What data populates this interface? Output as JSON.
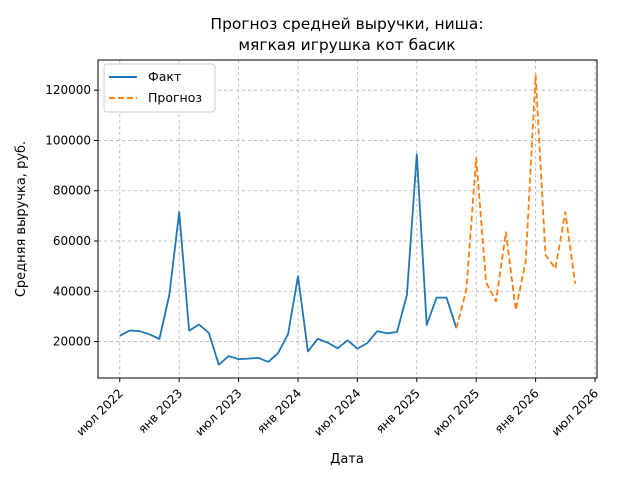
{
  "chart_data": {
    "type": "line",
    "title_lines": [
      "Прогноз средней выручки, ниша:",
      "мягкая игрушка кот басик"
    ],
    "xlabel": "Дата",
    "ylabel": "Средняя выручка, руб.",
    "x_tick_labels": [
      "июл 2022",
      "янв 2023",
      "июл 2023",
      "янв 2024",
      "июл 2024",
      "янв 2025",
      "июл 2025",
      "янв 2026",
      "июл 2026"
    ],
    "x_tick_months": [
      0,
      6,
      12,
      18,
      24,
      30,
      36,
      42,
      48
    ],
    "y_ticks": [
      20000,
      40000,
      60000,
      80000,
      100000,
      120000
    ],
    "y_tick_labels": [
      "20000",
      "40000",
      "60000",
      "80000",
      "100000",
      "120000"
    ],
    "xlim_months": [
      -2.2,
      48.2
    ],
    "ylim": [
      5500,
      132000
    ],
    "grid": true,
    "legend_position": "upper-left",
    "series": [
      {
        "name": "Факт",
        "color": "#1f77b4",
        "style": "solid",
        "x_months": [
          0,
          1,
          2,
          3,
          4,
          5,
          6,
          7,
          8,
          9,
          10,
          11,
          12,
          13,
          14,
          15,
          16,
          17,
          18,
          19,
          20,
          21,
          22,
          23,
          24,
          25,
          26,
          27,
          28,
          29,
          30,
          31,
          32,
          33,
          34
        ],
        "y": [
          22300,
          24400,
          24100,
          22900,
          21000,
          38500,
          71500,
          24300,
          26800,
          23400,
          10800,
          14200,
          13000,
          13200,
          13500,
          11900,
          15500,
          23000,
          46000,
          16100,
          21100,
          19600,
          17300,
          20500,
          17200,
          19400,
          24100,
          23300,
          23800,
          38500,
          94500,
          26600,
          37500,
          37500,
          25300
        ]
      },
      {
        "name": "Прогноз",
        "color": "#ff7f0e",
        "style": "dashed",
        "x_months": [
          34,
          35,
          36,
          37,
          38,
          39,
          40,
          41,
          42,
          43,
          44,
          45,
          46
        ],
        "y": [
          25300,
          40500,
          93000,
          43500,
          36000,
          63500,
          32500,
          52000,
          126000,
          54500,
          49000,
          71500,
          43000
        ]
      }
    ]
  }
}
